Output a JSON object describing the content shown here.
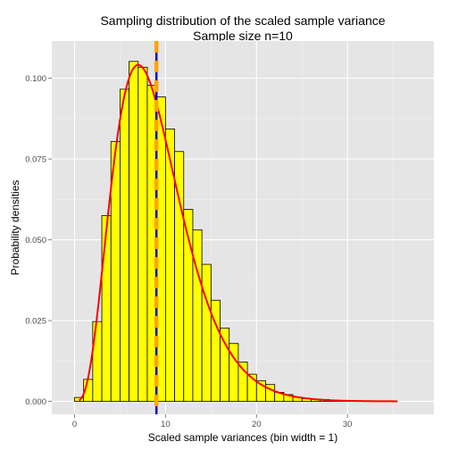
{
  "chart_data": {
    "type": "bar",
    "title": "Sampling distribution of the scaled sample variance",
    "subtitle": "Sample size n=10",
    "xlabel": "Scaled sample variances (bin width = 1)",
    "ylabel": "Probability densities",
    "xlim": [
      -2.5,
      39.5
    ],
    "ylim": [
      -0.004,
      0.1115
    ],
    "x_ticks": [
      0,
      10,
      20,
      30
    ],
    "x_tick_labels": [
      "0",
      "10",
      "20",
      "30"
    ],
    "y_ticks": [
      0.0,
      0.025,
      0.05,
      0.075,
      0.1
    ],
    "y_tick_labels": [
      "0.000",
      "0.025",
      "0.050",
      "0.075",
      "0.100"
    ],
    "bin_width": 1,
    "bin_left_edges": [
      -1,
      0,
      1,
      2,
      3,
      4,
      5,
      6,
      7,
      8,
      9,
      10,
      11,
      12,
      13,
      14,
      15,
      16,
      17,
      18,
      19,
      20,
      21,
      22,
      23,
      24,
      25,
      26,
      27,
      28,
      29,
      30,
      31,
      32,
      33,
      34,
      35,
      36,
      37
    ],
    "densities": [
      0.0,
      0.0012,
      0.0068,
      0.0247,
      0.0575,
      0.0804,
      0.0966,
      0.1052,
      0.1034,
      0.0978,
      0.0942,
      0.0843,
      0.0773,
      0.0594,
      0.0531,
      0.0424,
      0.0313,
      0.0227,
      0.0179,
      0.0122,
      0.0084,
      0.0064,
      0.0052,
      0.0028,
      0.0021,
      0.0013,
      0.0008,
      0.0006,
      0.0006,
      0.0003,
      0.0002,
      0.0001,
      0.0001,
      0.0001,
      0.0,
      0.0,
      0.0,
      0.0,
      0.0
    ],
    "density_curve": {
      "distribution": "chi-squared",
      "df": 9,
      "x_range": [
        0.5,
        35.5
      ],
      "color": "#ff0000"
    },
    "vlines": [
      {
        "x": 9,
        "color": "#0000cc",
        "style": "solid"
      },
      {
        "x": 9,
        "color": "#ffa500",
        "style": "dashed"
      }
    ],
    "colors": {
      "bar_fill": "#ffff00",
      "bar_stroke": "#000000",
      "panel_background": "#e5e5e5",
      "grid": "#ffffff"
    },
    "grid": true,
    "legend": "none"
  }
}
